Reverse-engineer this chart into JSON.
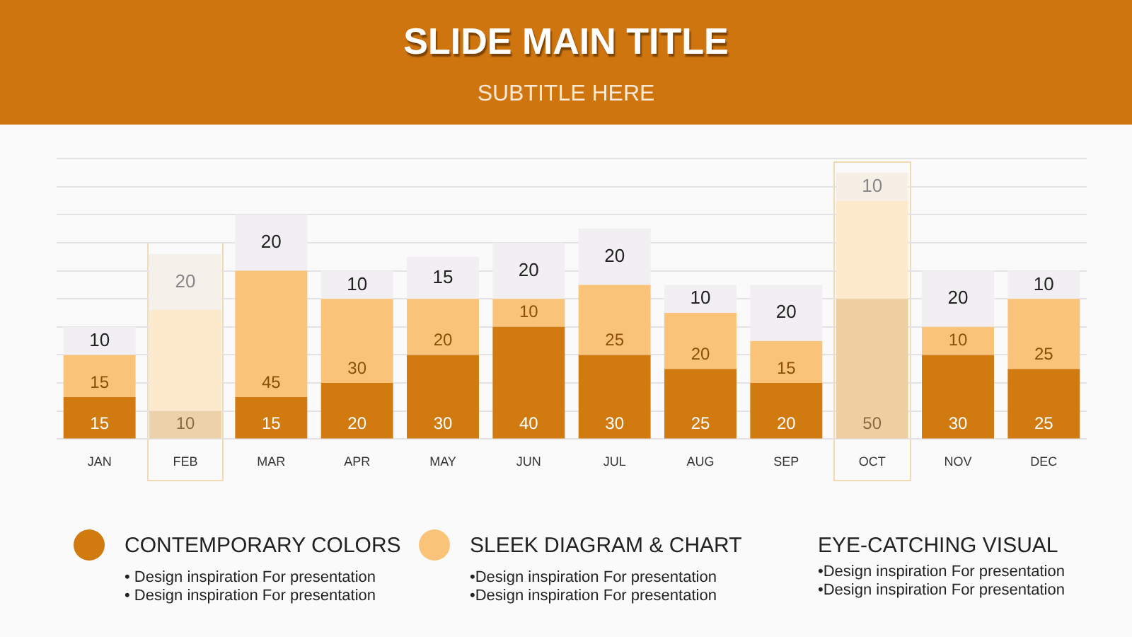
{
  "chart_data": {
    "type": "bar",
    "title": "SLIDE MAIN TITLE",
    "subtitle": "SUBTITLE HERE",
    "categories": [
      "JAN",
      "FEB",
      "MAR",
      "APR",
      "MAY",
      "JUN",
      "JUL",
      "AUG",
      "SEP",
      "OCT",
      "NOV",
      "DEC"
    ],
    "stacked": true,
    "ylim": [
      0,
      100
    ],
    "yticks": [
      {
        "value": 0,
        "label": null
      },
      {
        "value": 10,
        "label": null
      },
      {
        "value": 20,
        "label": null
      },
      {
        "value": 30,
        "label": null
      },
      {
        "value": 40,
        "label": null
      },
      {
        "value": 50,
        "label": null
      },
      {
        "value": 60,
        "label": null
      },
      {
        "value": 70,
        "label": null
      },
      {
        "value": 80,
        "label": null
      },
      {
        "value": 90,
        "label": null
      },
      {
        "value": 100,
        "label": null
      }
    ],
    "grid": "y",
    "tick_labels": "x",
    "legend": "bottom",
    "series": [
      {
        "name": "CONTEMPORARY COLORS",
        "color": "#d07a10",
        "colors": [
          "#d07a10",
          "#ecd2aa",
          "#d07a10",
          "#d07a10",
          "#d07a10",
          "#d07a10",
          "#d07a10",
          "#d07a10",
          "#d07a10",
          "#eecfa2",
          "#d07a10",
          "#d07a10"
        ],
        "values": [
          15,
          10,
          15,
          20,
          30,
          40,
          30,
          25,
          20,
          50,
          30,
          25
        ],
        "value_labels": [
          "15",
          "10",
          "15",
          "20",
          "30",
          "40",
          "30",
          "25",
          "20",
          "50",
          "30",
          "25"
        ]
      },
      {
        "name": "SLEEK DIAGRAM & CHART",
        "color": "#f9c47a",
        "colors": [
          "#f9c47a",
          "#fde9cc",
          "#f9c47a",
          "#f9c47a",
          "#f9c47a",
          "#f9c47a",
          "#f9c47a",
          "#f9c47a",
          "#f9c47a",
          "#fde9cc",
          "#f9c47a",
          "#f9c47a"
        ],
        "values": [
          15,
          36,
          45,
          30,
          20,
          10,
          25,
          20,
          15,
          35,
          10,
          25
        ],
        "value_labels": [
          "15",
          null,
          "45",
          "30",
          "20",
          "10",
          "25",
          "20",
          "15",
          null,
          "10",
          "25"
        ]
      },
      {
        "color": "#f1eff2",
        "colors": [
          "#f1eff2",
          "#f6f0ea",
          "#f1eff2",
          "#f1eff2",
          "#f1eff2",
          "#f1eff2",
          "#f1eff2",
          "#f1eff2",
          "#f1eff2",
          "#f6efe6",
          "#f1eff2",
          "#f1eff2"
        ],
        "values": [
          10,
          20,
          20,
          10,
          15,
          20,
          20,
          10,
          20,
          10,
          20,
          10
        ],
        "value_labels": [
          "10",
          "20",
          "20",
          "10",
          "15",
          "20",
          "20",
          "10",
          "20",
          "10",
          "20",
          "10"
        ]
      }
    ],
    "annotations": [
      "• Design inspiration For presentation",
      "• Design inspiration For presentation",
      "•Design inspiration For presentation",
      "•Design inspiration For presentation",
      "EYE-CATCHING VISUAL",
      "•Design inspiration For presentation",
      "•Design inspiration For presentation"
    ]
  }
}
